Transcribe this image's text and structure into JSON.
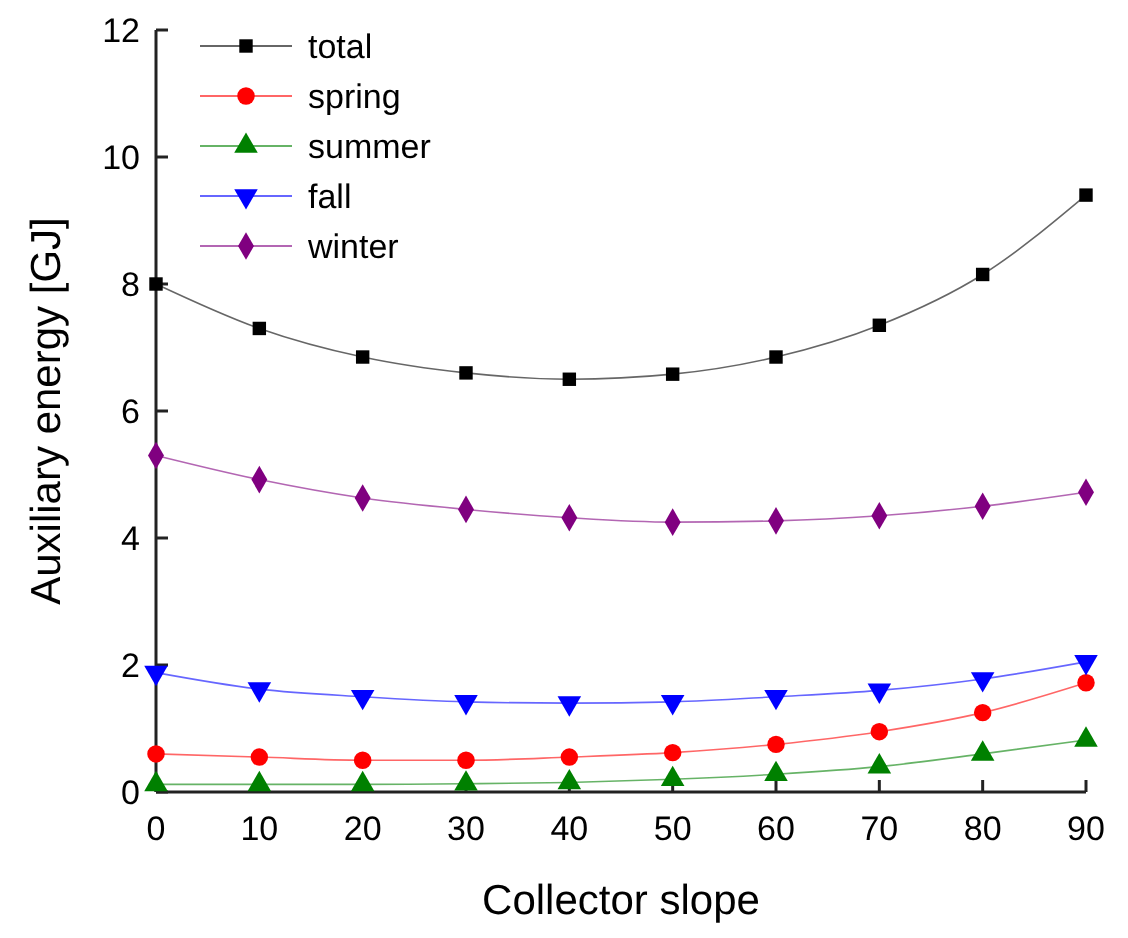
{
  "chart_data": {
    "type": "line",
    "xlabel": "Collector slope",
    "ylabel": "Auxiliary energy [GJ]",
    "x": [
      0,
      10,
      20,
      30,
      40,
      50,
      60,
      70,
      80,
      90
    ],
    "xlim": [
      0,
      90
    ],
    "xticks": [
      0,
      10,
      20,
      30,
      40,
      50,
      60,
      70,
      80,
      90
    ],
    "ylim": [
      0,
      12
    ],
    "yticks": [
      0,
      2,
      4,
      6,
      8,
      10,
      12
    ],
    "legend": "top left",
    "grid": false,
    "series": [
      {
        "name": "total",
        "color": "#000000",
        "marker": "square",
        "values": [
          8.0,
          7.3,
          6.85,
          6.6,
          6.5,
          6.58,
          6.85,
          7.35,
          8.15,
          9.4
        ]
      },
      {
        "name": "spring",
        "color": "#ff0000",
        "marker": "circle",
        "values": [
          0.6,
          0.55,
          0.5,
          0.5,
          0.55,
          0.62,
          0.75,
          0.95,
          1.25,
          1.72
        ]
      },
      {
        "name": "summer",
        "color": "#008000",
        "marker": "triangle",
        "values": [
          0.12,
          0.12,
          0.12,
          0.13,
          0.15,
          0.2,
          0.28,
          0.4,
          0.6,
          0.82
        ]
      },
      {
        "name": "fall",
        "color": "#0000ff",
        "marker": "triangle-down",
        "values": [
          1.88,
          1.62,
          1.5,
          1.42,
          1.4,
          1.42,
          1.5,
          1.6,
          1.78,
          2.05
        ]
      },
      {
        "name": "winter",
        "color": "#800080",
        "marker": "diamond",
        "values": [
          5.3,
          4.92,
          4.63,
          4.45,
          4.32,
          4.25,
          4.27,
          4.35,
          4.5,
          4.72
        ]
      }
    ]
  }
}
